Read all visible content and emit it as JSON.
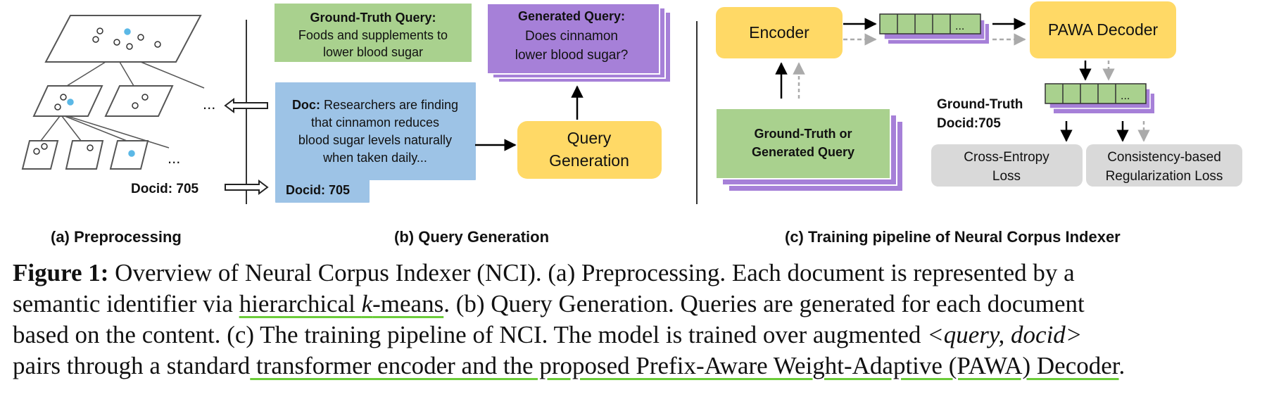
{
  "colors": {
    "green": "#a9d18e",
    "yellow": "#ffd966",
    "blue": "#9dc3e6",
    "purple": "#a680d8",
    "gray": "#d9d9d9",
    "dot_blue": "#5bb8e6",
    "underline": "#6ccc3a"
  },
  "panel_a": {
    "ellipsis_mid": "...",
    "ellipsis_low": "...",
    "docid": "Docid: 705",
    "label": "(a) Preprocessing"
  },
  "panel_b": {
    "gt_query_title": "Ground-Truth Query:",
    "gt_query_line1": "Foods and supplements to",
    "gt_query_line2": "lower blood sugar",
    "gen_query_title": "Generated Query:",
    "gen_query_line1": "Does cinnamon",
    "gen_query_line2": "lower blood sugar?",
    "doc_title": "Doc:",
    "doc_line1": "Researchers are finding",
    "doc_line2": "that cinnamon reduces",
    "doc_line3": "blood sugar levels naturally",
    "doc_line4": "when taken daily...",
    "doc_docid": "Docid: 705",
    "query_gen_line1": "Query",
    "query_gen_line2": "Generation",
    "label": "(b) Query Generation"
  },
  "panel_c": {
    "encoder": "Encoder",
    "decoder": "PAWA Decoder",
    "embed_ellipsis": "...",
    "out_ellipsis": "...",
    "input_line1": "Ground-Truth or",
    "input_line2": "Generated Query",
    "gt_docid_line1": "Ground-Truth",
    "gt_docid_line2": "Docid:705",
    "ce_loss_line1": "Cross-Entropy",
    "ce_loss_line2": "Loss",
    "reg_loss_line1": "Consistency-based",
    "reg_loss_line2": "Regularization Loss",
    "label": "(c) Training pipeline of Neural Corpus Indexer"
  },
  "caption": {
    "fig_label": "Figure 1:",
    "l1": " Overview of Neural Corpus Indexer (NCI). (a) Preprocessing. Each document is represented by a",
    "l2_pre": "semantic identifier via ",
    "l2_ul_a": "hierarchical ",
    "l2_ul_k": "k",
    "l2_ul_b": "-means",
    "l2_post": ". (b) Query Generation. Queries are generated for each document",
    "l3_pre": "based on the content. (c) The training pipeline of NCI. The model is trained over augmented ",
    "l3_it": "<query, docid>",
    "l4_pre": "pairs through a standard",
    "l4_ul": " transformer encoder and the proposed Prefix-Aware Weight-Adaptive (PAWA) Decoder",
    "l4_post": "."
  }
}
